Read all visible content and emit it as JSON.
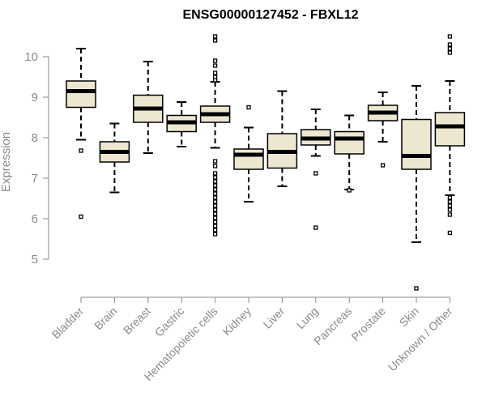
{
  "chart_data": {
    "type": "boxplot",
    "title": "ENSG00000127452 - FBXL12",
    "ylabel": "Expression",
    "xlabel": "",
    "ylim": [
      4.2,
      10.6
    ],
    "yticks": [
      5,
      6,
      7,
      8,
      9,
      10
    ],
    "box_fill": "#ede6d0",
    "categories": [
      "Bladder",
      "Brain",
      "Breast",
      "Gastric",
      "Hematopoietic cells",
      "Kidney",
      "Liver",
      "Lung",
      "Pancreas",
      "Prostate",
      "Skin",
      "Unknown / Other"
    ],
    "boxes": [
      {
        "whisker_low": 7.95,
        "q1": 8.75,
        "median": 9.15,
        "q3": 9.4,
        "whisker_high": 10.2,
        "outliers": [
          7.68,
          6.05
        ]
      },
      {
        "whisker_low": 6.65,
        "q1": 7.4,
        "median": 7.65,
        "q3": 7.9,
        "whisker_high": 8.35,
        "outliers": []
      },
      {
        "whisker_low": 7.62,
        "q1": 8.38,
        "median": 8.72,
        "q3": 9.05,
        "whisker_high": 9.88,
        "outliers": []
      },
      {
        "whisker_low": 7.78,
        "q1": 8.15,
        "median": 8.38,
        "q3": 8.55,
        "whisker_high": 8.88,
        "outliers": []
      },
      {
        "whisker_low": 7.75,
        "q1": 8.38,
        "median": 8.58,
        "q3": 8.78,
        "whisker_high": 9.38,
        "outliers": [
          10.5,
          10.4,
          9.9,
          9.78,
          9.6,
          9.5,
          9.42,
          7.42,
          7.3,
          7.12,
          7.02,
          6.92,
          6.82,
          6.72,
          6.62,
          6.52,
          6.42,
          6.32,
          6.22,
          6.12,
          6.02,
          5.92,
          5.82,
          5.72,
          5.62
        ]
      },
      {
        "whisker_low": 6.42,
        "q1": 7.22,
        "median": 7.58,
        "q3": 7.72,
        "whisker_high": 8.25,
        "outliers": [
          8.75
        ]
      },
      {
        "whisker_low": 6.8,
        "q1": 7.25,
        "median": 7.65,
        "q3": 8.1,
        "whisker_high": 9.15,
        "outliers": []
      },
      {
        "whisker_low": 7.55,
        "q1": 7.82,
        "median": 7.98,
        "q3": 8.2,
        "whisker_high": 8.7,
        "outliers": [
          7.12,
          5.78
        ]
      },
      {
        "whisker_low": 6.72,
        "q1": 7.6,
        "median": 7.98,
        "q3": 8.15,
        "whisker_high": 8.55,
        "outliers": [
          6.7
        ]
      },
      {
        "whisker_low": 7.9,
        "q1": 8.42,
        "median": 8.62,
        "q3": 8.8,
        "whisker_high": 9.12,
        "outliers": [
          7.32
        ]
      },
      {
        "whisker_low": 5.42,
        "q1": 7.22,
        "median": 7.55,
        "q3": 8.45,
        "whisker_high": 9.28,
        "outliers": [
          4.28
        ]
      },
      {
        "whisker_low": 6.58,
        "q1": 7.8,
        "median": 8.28,
        "q3": 8.62,
        "whisker_high": 9.4,
        "outliers": [
          10.5,
          10.3,
          10.2,
          10.1,
          6.52,
          6.42,
          6.32,
          6.22,
          6.1,
          5.65
        ]
      }
    ]
  }
}
